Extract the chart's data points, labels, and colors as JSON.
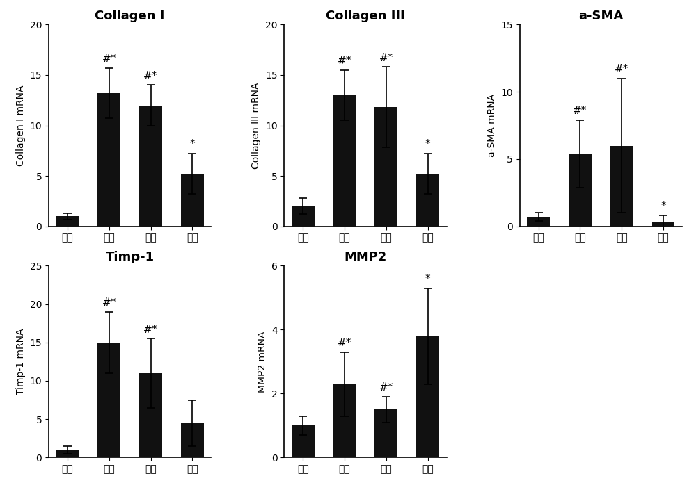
{
  "subplots": [
    {
      "title": "Collagen I",
      "ylabel": "Collagen I mRNA",
      "values": [
        1.0,
        13.2,
        12.0,
        5.2
      ],
      "errors": [
        0.3,
        2.5,
        2.0,
        2.0
      ],
      "ylim": [
        0,
        20
      ],
      "yticks": [
        0,
        5,
        10,
        15,
        20
      ],
      "annotations": [
        "",
        "#*",
        "#*",
        "*"
      ]
    },
    {
      "title": "Collagen III",
      "ylabel": "Collagen III mRNA",
      "values": [
        2.0,
        13.0,
        11.8,
        5.2
      ],
      "errors": [
        0.8,
        2.5,
        4.0,
        2.0
      ],
      "ylim": [
        0,
        20
      ],
      "yticks": [
        0,
        5,
        10,
        15,
        20
      ],
      "annotations": [
        "",
        "#*",
        "#*",
        "*"
      ]
    },
    {
      "title": "a-SMA",
      "ylabel": "a-SMA mRNA",
      "values": [
        0.7,
        5.4,
        6.0,
        0.3
      ],
      "errors": [
        0.3,
        2.5,
        5.0,
        0.5
      ],
      "ylim": [
        0,
        15
      ],
      "yticks": [
        0,
        5,
        10,
        15
      ],
      "annotations": [
        "",
        "#*",
        "#*",
        "*"
      ]
    },
    {
      "title": "Timp-1",
      "ylabel": "Timp-1 mRNA",
      "values": [
        1.0,
        15.0,
        11.0,
        4.5
      ],
      "errors": [
        0.5,
        4.0,
        4.5,
        3.0
      ],
      "ylim": [
        0,
        25
      ],
      "yticks": [
        0,
        5,
        10,
        15,
        20,
        25
      ],
      "annotations": [
        "",
        "#*",
        "#*",
        ""
      ]
    },
    {
      "title": "MMP2",
      "ylabel": "MMP2 mRNA",
      "values": [
        1.0,
        2.3,
        1.5,
        3.8
      ],
      "errors": [
        0.3,
        1.0,
        0.4,
        1.5
      ],
      "ylim": [
        0,
        6
      ],
      "yticks": [
        0,
        2,
        4,
        6
      ],
      "annotations": [
        "",
        "#*",
        "#*",
        "*"
      ]
    }
  ],
  "categories": [
    "组一",
    "组二",
    "组三",
    "组四"
  ],
  "bar_color": "#111111",
  "bar_width": 0.55,
  "capsize": 4,
  "annotation_fontsize": 11,
  "title_fontsize": 13,
  "label_fontsize": 10,
  "tick_fontsize": 10,
  "background_color": "#ffffff"
}
